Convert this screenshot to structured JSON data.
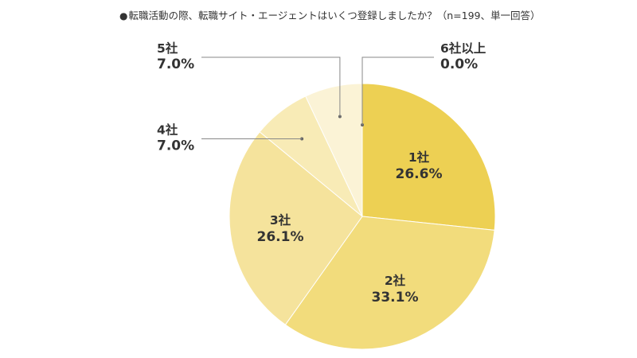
{
  "title": {
    "bullet": "●",
    "text": "転職活動の際、転職サイト・エージェントはいくつ登録しましたか？（n=199、単一回答）"
  },
  "chart_data": {
    "type": "pie",
    "title": "転職活動の際、転職サイト・エージェントはいくつ登録しましたか？（n=199、単一回答）",
    "categories": [
      "1社",
      "2社",
      "3社",
      "4社",
      "5社",
      "6社以上"
    ],
    "values": [
      26.6,
      33.1,
      26.1,
      7.0,
      7.0,
      0.0
    ],
    "value_labels": [
      "26.6%",
      "33.1%",
      "26.1%",
      "7.0%",
      "7.0%",
      "0.0%"
    ],
    "colors": [
      "#edd053",
      "#f2dc7c",
      "#f5e39c",
      "#f8ebb6",
      "#fbf3d6",
      "#fdf8e8"
    ],
    "start": "12 o'clock",
    "direction": "clockwise",
    "label_placement": {
      "1社": "inside",
      "2社": "inside",
      "3社": "inside",
      "4社": "outside-left",
      "5社": "outside-top-left",
      "6社以上": "outside-top-right"
    }
  }
}
